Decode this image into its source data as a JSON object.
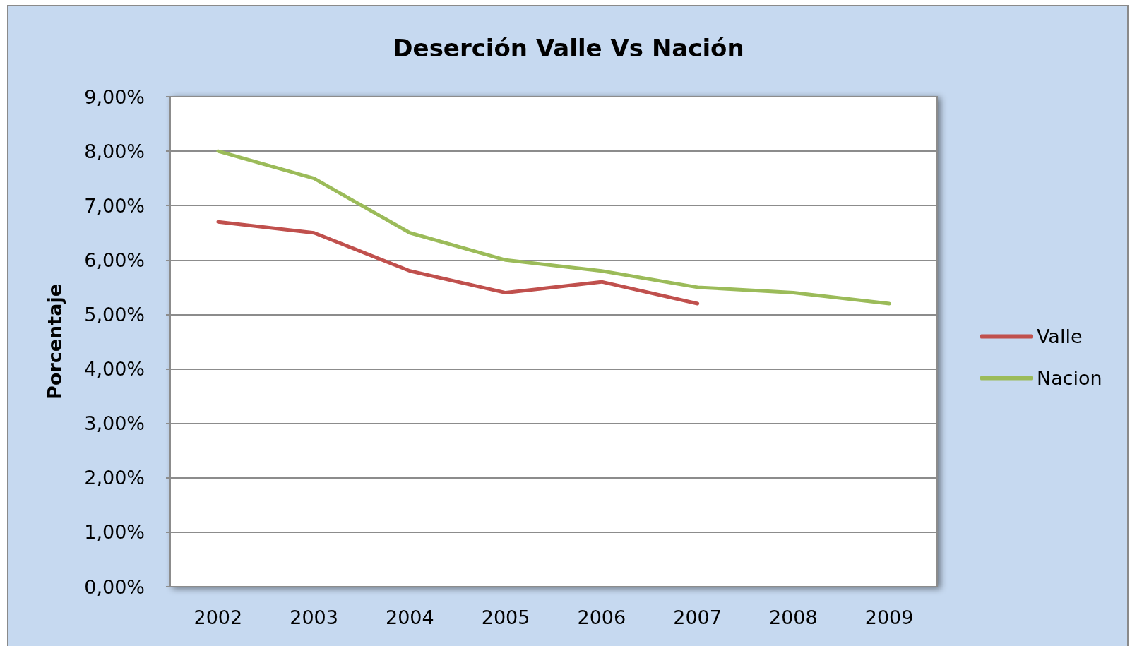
{
  "chart_data": {
    "type": "line",
    "title": "Deserción Valle Vs Nación",
    "ylabel": "Porcentaje",
    "categories": [
      "2002",
      "2003",
      "2004",
      "2005",
      "2006",
      "2007",
      "2008",
      "2009"
    ],
    "series": [
      {
        "name": "Valle",
        "color": "#c0504d",
        "values": [
          6.7,
          6.5,
          5.8,
          5.4,
          5.6,
          5.2,
          null,
          null
        ]
      },
      {
        "name": "Nacion",
        "color": "#9bbb59",
        "values": [
          8.0,
          7.5,
          6.5,
          6.0,
          5.8,
          5.5,
          5.4,
          5.2
        ]
      }
    ],
    "ylim": [
      0,
      9
    ],
    "yticks": [
      {
        "value": 0,
        "label": "0,00%"
      },
      {
        "value": 1,
        "label": "1,00%"
      },
      {
        "value": 2,
        "label": "2,00%"
      },
      {
        "value": 3,
        "label": "3,00%"
      },
      {
        "value": 4,
        "label": "4,00%"
      },
      {
        "value": 5,
        "label": "5,00%"
      },
      {
        "value": 6,
        "label": "6,00%"
      },
      {
        "value": 7,
        "label": "7,00%"
      },
      {
        "value": 8,
        "label": "8,00%"
      },
      {
        "value": 9,
        "label": "9,00%"
      }
    ],
    "grid": "y",
    "legend": "right",
    "marker": "none"
  }
}
